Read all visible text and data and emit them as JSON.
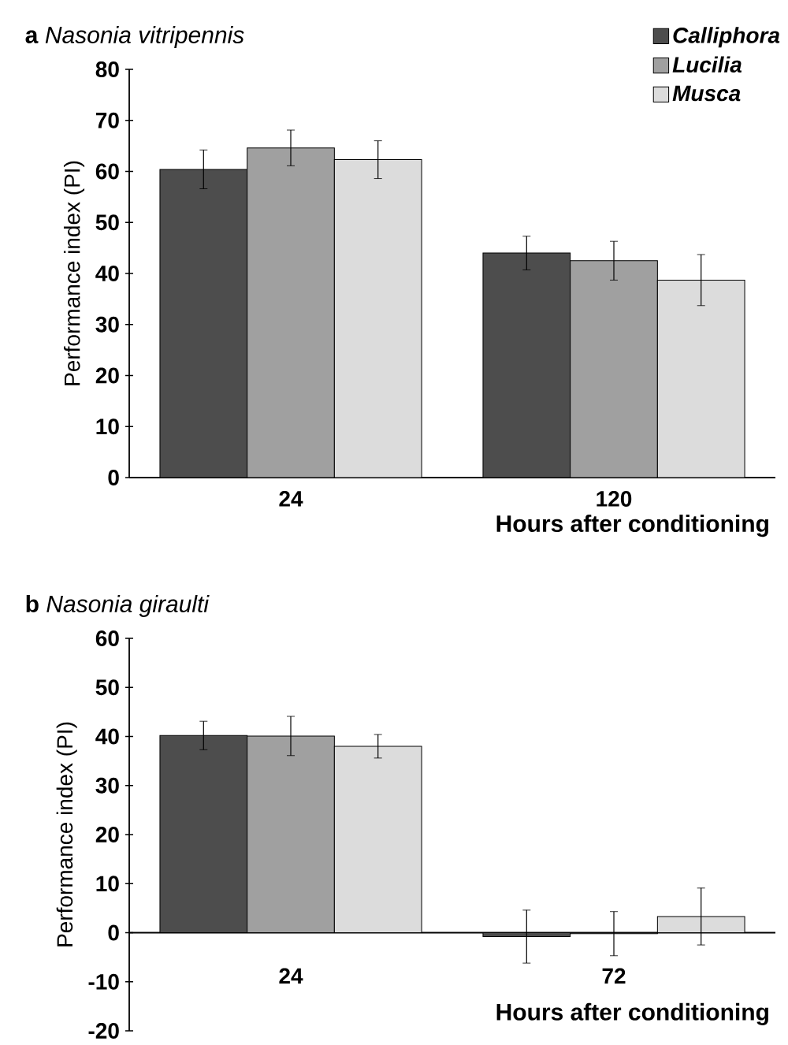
{
  "chart_data": [
    {
      "type": "bar",
      "title": "**a** *Nasonia vitripennis*",
      "xlabel": "Hours after conditioning",
      "ylabel": "Performance index (PI)",
      "categories": [
        "24",
        "120"
      ],
      "ylim": [
        0,
        80
      ],
      "yticks": [
        0,
        10,
        20,
        30,
        40,
        50,
        60,
        70,
        80
      ],
      "legend": "top right",
      "series": [
        {
          "name": "Calliphora",
          "color": "#4d4d4d",
          "values": [
            60.4,
            44.0
          ],
          "errors": [
            3.8,
            3.3
          ]
        },
        {
          "name": "Lucilia",
          "color": "#a0a0a0",
          "values": [
            64.6,
            42.5
          ],
          "errors": [
            3.5,
            3.8
          ]
        },
        {
          "name": "Musca",
          "color": "#dcdcdc",
          "values": [
            62.3,
            38.7
          ],
          "errors": [
            3.7,
            5.0
          ]
        }
      ]
    },
    {
      "type": "bar",
      "title": "**b** *Nasonia giraulti*",
      "xlabel": "Hours after conditioning",
      "ylabel": "Performance index (PI)",
      "categories": [
        "24",
        "72"
      ],
      "ylim": [
        -20,
        60
      ],
      "yticks": [
        -20,
        -10,
        0,
        10,
        20,
        30,
        40,
        50,
        60
      ],
      "series": [
        {
          "color": "#4d4d4d",
          "values": [
            40.2,
            -0.8
          ],
          "errors": [
            2.9,
            5.4
          ]
        },
        {
          "color": "#a0a0a0",
          "values": [
            40.1,
            -0.2
          ],
          "errors": [
            4.0,
            4.5
          ]
        },
        {
          "color": "#dcdcdc",
          "values": [
            38.0,
            3.3
          ],
          "errors": [
            2.4,
            5.8
          ]
        }
      ]
    }
  ]
}
